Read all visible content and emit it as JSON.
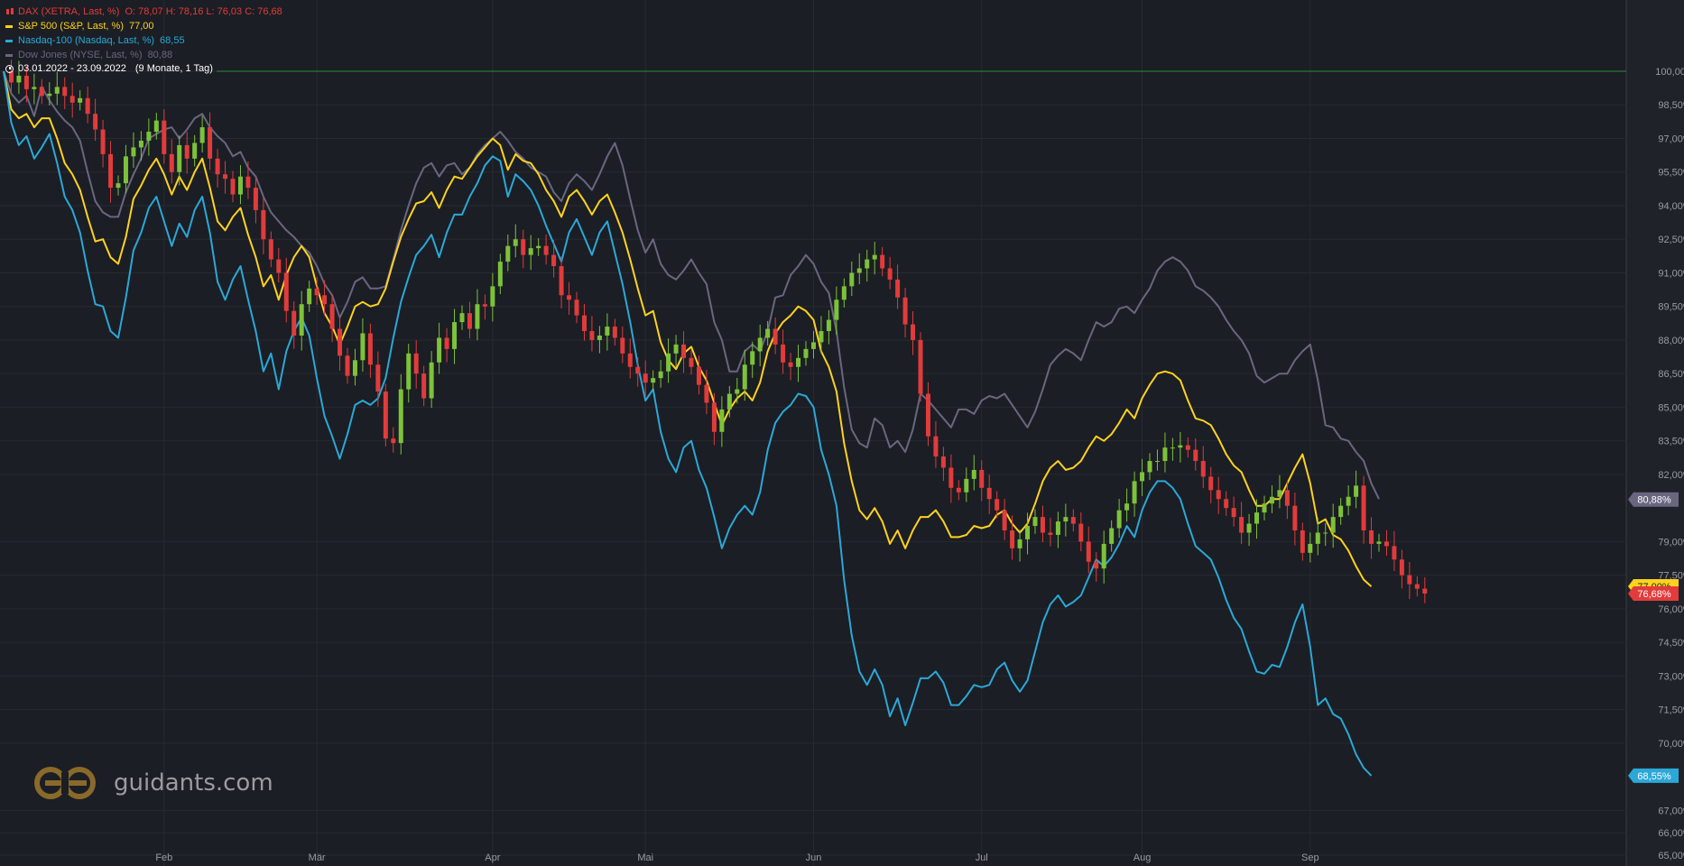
{
  "legend": {
    "dax": {
      "label": "DAX (XETRA, Last, %)",
      "ohlc": "O: 78,07  H: 78,16  L: 76,03  C: 76,68",
      "color": "#e23b3b"
    },
    "sp500": {
      "label": "S&P 500 (S&P, Last, %)",
      "value": "77,00",
      "color": "#ffd21e"
    },
    "nasdaq": {
      "label": "Nasdaq-100 (Nasdaq, Last, %)",
      "value": "68,55",
      "color": "#2ba8d8"
    },
    "dow": {
      "label": "Dow Jones (NYSE, Last, %)",
      "value": "80,88",
      "color": "#6a6680"
    }
  },
  "range": {
    "text": "03.01.2022 - 23.09.2022",
    "period": "(9 Monate, 1 Tag)"
  },
  "logo": {
    "text": "guidants.com"
  },
  "chart_data": {
    "type": "line",
    "title": "",
    "xlabel": "",
    "ylabel": "",
    "ylim": [
      65,
      100
    ],
    "yticks": [
      "100,00%",
      "98,50%",
      "97,00%",
      "95,50%",
      "94,00%",
      "92,50%",
      "91,00%",
      "89,50%",
      "88,00%",
      "86,50%",
      "85,00%",
      "83,50%",
      "82,00%",
      "79,00%",
      "77,50%",
      "76,00%",
      "74,50%",
      "73,00%",
      "71,50%",
      "70,00%",
      "67,00%",
      "66,00%",
      "65,00%"
    ],
    "ytick_values": [
      100,
      98.5,
      97,
      95.5,
      94,
      92.5,
      91,
      89.5,
      88,
      86.5,
      85,
      83.5,
      82,
      79,
      77.5,
      76,
      74.5,
      73,
      71.5,
      70,
      67,
      66,
      65
    ],
    "xticks": [
      "Feb",
      "Mär",
      "Apr",
      "Mai",
      "Jun",
      "Jul",
      "Aug",
      "Sep"
    ],
    "xtick_day_index": [
      21,
      41,
      64,
      84,
      106,
      128,
      149,
      171
    ],
    "reference_line": 100,
    "last_labels": [
      {
        "series": "Dow Jones",
        "text": "80,88%",
        "value": 80.88,
        "color": "#6a6680"
      },
      {
        "series": "S&P 500",
        "text": "77,00%",
        "value": 77.0,
        "color": "#ffd21e"
      },
      {
        "series": "DAX",
        "text": "76,68%",
        "value": 76.68,
        "color": "#e23b3b"
      },
      {
        "series": "Nasdaq-100",
        "text": "68,55%",
        "value": 68.55,
        "color": "#2ba8d8"
      }
    ],
    "series": [
      {
        "name": "Dow Jones",
        "color": "#6a6680",
        "values": [
          100,
          99,
          98.6,
          98.9,
          98,
          99.3,
          98.7,
          98.2,
          97.8,
          97.5,
          96.9,
          95.5,
          94.2,
          93.7,
          93.5,
          93.5,
          94.6,
          95.4,
          96.1,
          97,
          97.2,
          97.4,
          97.5,
          97,
          97.4,
          97.9,
          98.1,
          97.5,
          97.1,
          96.8,
          96.2,
          96.4,
          95.7,
          95.3,
          94.4,
          93.7,
          93.3,
          92.9,
          92.6,
          92.2,
          91.9,
          91.3,
          90.5,
          90,
          89,
          89.7,
          90.6,
          90.8,
          90.3,
          90.3,
          90.4,
          91.6,
          92.9,
          94,
          95,
          95.7,
          95.9,
          95.3,
          95.8,
          95.9,
          95.4,
          95.7,
          96.3,
          96.7,
          97,
          97.3,
          96.9,
          96.4,
          96.1,
          95.7,
          95.5,
          95.3,
          94.6,
          94.2,
          95,
          95.4,
          95.1,
          94.7,
          95.4,
          96.2,
          96.8,
          95.8,
          94.3,
          92.9,
          91.9,
          92.5,
          91.4,
          90.9,
          90.7,
          91.1,
          91.6,
          91,
          90.5,
          88.8,
          88,
          86.6,
          86.6,
          87.5,
          87.8,
          87.5,
          88.4,
          89.9,
          90,
          90.9,
          91.3,
          91.8,
          91.4,
          90.6,
          90.1,
          88.4,
          85.9,
          84,
          83.4,
          83.2,
          84.5,
          84.2,
          83.2,
          83.5,
          83,
          84,
          85.6,
          85.3,
          84.9,
          84.5,
          84.1,
          84.9,
          84.9,
          84.7,
          85.3,
          85.5,
          85.4,
          85.6,
          85.1,
          84.6,
          84.1,
          84.8,
          85.8,
          86.9,
          87.3,
          87.6,
          87.4,
          87.1,
          88,
          88.8,
          88.6,
          88.8,
          89.4,
          89.5,
          89.2,
          89.8,
          90.3,
          91.1,
          91.5,
          91.7,
          91.5,
          91.1,
          90.4,
          90.2,
          89.9,
          89.5,
          88.9,
          88.4,
          88,
          87.4,
          86.4,
          86.1,
          86.3,
          86.5,
          86.5,
          87.1,
          87.5,
          87.8,
          86.2,
          84.2,
          84.1,
          83.6,
          83.5,
          83,
          82.6,
          81.6,
          80.9
        ]
      },
      {
        "name": "S&P 500",
        "color": "#ffd21e",
        "values": [
          100,
          98.3,
          97.9,
          98.1,
          97.5,
          97.9,
          97.9,
          97,
          95.9,
          95.4,
          94.7,
          93.5,
          92.4,
          92.5,
          91.7,
          91.4,
          92.6,
          94.3,
          94.9,
          95.6,
          96.1,
          95.4,
          94.5,
          95.3,
          94.7,
          95.5,
          96.1,
          94.8,
          93.3,
          92.9,
          93.5,
          93.9,
          92.7,
          91.7,
          90.4,
          90.9,
          89.8,
          90.9,
          91.7,
          92.2,
          91.7,
          90.4,
          89.2,
          88.6,
          87.8,
          88.6,
          89.5,
          89.7,
          89.5,
          89.6,
          90.3,
          91.5,
          92.6,
          93.4,
          94.1,
          94.2,
          94.6,
          93.9,
          94.7,
          95.3,
          95.2,
          95.7,
          96.2,
          96.6,
          97,
          96.7,
          95.6,
          96.3,
          96,
          95.9,
          95.4,
          94.7,
          94.2,
          93.5,
          94.4,
          94.7,
          94.2,
          93.6,
          94.2,
          94.5,
          93.7,
          92.8,
          91.6,
          90.3,
          89.1,
          89.3,
          87.9,
          87.1,
          86.7,
          87.4,
          87.7,
          86.8,
          86.2,
          85.2,
          84.2,
          84.9,
          85.4,
          85.7,
          85.3,
          86.1,
          87.5,
          88.3,
          88.8,
          89.1,
          89.5,
          89.3,
          88.9,
          87.5,
          86.8,
          85.7,
          83.4,
          81.7,
          80.4,
          80,
          80.5,
          79.9,
          78.9,
          79.5,
          78.7,
          79.5,
          80.1,
          80.1,
          80.4,
          79.9,
          79.2,
          79.2,
          79.3,
          79.7,
          79.6,
          79.7,
          80.2,
          80.4,
          79.8,
          79.4,
          79.8,
          80.7,
          81.7,
          82.3,
          82.6,
          82.2,
          82.3,
          82.6,
          83.2,
          83.7,
          83.5,
          83.8,
          84.3,
          84.9,
          84.5,
          85.4,
          86,
          86.5,
          86.6,
          86.5,
          86.2,
          85.3,
          84.5,
          84.4,
          84.2,
          83.6,
          82.9,
          82.4,
          82.1,
          81.3,
          80.6,
          80.6,
          80.9,
          80.9,
          81.6,
          82.3,
          82.9,
          81.6,
          79.8,
          80,
          79.3,
          79.1,
          78.6,
          77.9,
          77.3,
          77
        ]
      },
      {
        "name": "Nasdaq-100",
        "color": "#2ba8d8",
        "values": [
          100,
          97.7,
          96.7,
          97.1,
          96.1,
          96.6,
          97.2,
          95.9,
          94.4,
          93.8,
          92.8,
          91.1,
          89.6,
          89.5,
          88.4,
          88.1,
          89.9,
          92,
          92.8,
          93.9,
          94.4,
          93.3,
          92.2,
          93.2,
          92.6,
          93.8,
          94.4,
          92.8,
          90.6,
          89.8,
          90.7,
          91.3,
          89.8,
          88.4,
          86.6,
          87.4,
          85.8,
          87.5,
          88.4,
          89,
          88.2,
          86.3,
          84.6,
          83.7,
          82.7,
          83.8,
          85.1,
          85.3,
          85.1,
          85.4,
          86.3,
          88.1,
          89.7,
          90.8,
          91.8,
          92.2,
          92.7,
          91.7,
          92.8,
          93.6,
          93.6,
          94.4,
          95,
          95.8,
          96.2,
          96,
          94.4,
          95.4,
          95.1,
          94.7,
          94,
          93.1,
          92.3,
          91.5,
          92.8,
          93.4,
          92.6,
          91.8,
          92.8,
          93.3,
          91.9,
          90.5,
          88.8,
          86.9,
          85.3,
          85.8,
          83.9,
          82.7,
          82.1,
          83.2,
          83.5,
          82.2,
          81.4,
          80.1,
          78.7,
          79.6,
          80.2,
          80.6,
          80.2,
          81.2,
          83.1,
          84.3,
          84.8,
          85.1,
          85.6,
          85.5,
          85,
          83.1,
          82,
          80.6,
          77.3,
          74.8,
          73.2,
          72.6,
          73.3,
          72.6,
          71.2,
          72,
          70.8,
          71.8,
          72.9,
          72.9,
          73.2,
          72.7,
          71.7,
          71.7,
          72.1,
          72.6,
          72.5,
          72.6,
          73.3,
          73.6,
          72.8,
          72.3,
          72.8,
          74.1,
          75.4,
          76.2,
          76.6,
          76.1,
          76.3,
          76.6,
          77.4,
          78.2,
          77.9,
          78.3,
          78.9,
          79.7,
          79.2,
          80.4,
          81.2,
          81.7,
          81.7,
          81.4,
          80.9,
          79.8,
          78.8,
          78.5,
          78.2,
          77.4,
          76.4,
          75.6,
          75.1,
          74.1,
          73.2,
          73.1,
          73.5,
          73.4,
          74.3,
          75.4,
          76.2,
          74.3,
          71.7,
          72,
          71.3,
          71.1,
          70.4,
          69.5,
          68.9,
          68.55
        ]
      }
    ],
    "candles": {
      "name": "DAX",
      "up_color": "#7cc23a",
      "down_color": "#e23b3b",
      "close": [
        100,
        99.5,
        99.8,
        99.2,
        99.3,
        98.9,
        99,
        99.3,
        98.9,
        98.6,
        98.8,
        98.1,
        97.4,
        96.3,
        94.8,
        95,
        96.2,
        96.6,
        96.9,
        97.3,
        97.8,
        96.3,
        95.5,
        96.7,
        96.1,
        96.8,
        97.5,
        96.1,
        95.4,
        95.2,
        94.5,
        95.3,
        94.8,
        93.8,
        92.5,
        91.6,
        91,
        89.3,
        88.2,
        89.6,
        90.3,
        90,
        89.6,
        88.5,
        87.3,
        86.4,
        87.1,
        88.3,
        86.9,
        85.7,
        83.6,
        83.4,
        85.8,
        87.4,
        86.5,
        85.4,
        87,
        88.1,
        87.6,
        88.8,
        89.2,
        88.5,
        89.6,
        89.5,
        90.4,
        91.5,
        92.2,
        92.5,
        91.8,
        92.1,
        92.2,
        91.8,
        91.3,
        90,
        89.8,
        89.1,
        88.4,
        88,
        88.2,
        88.6,
        88.1,
        87.4,
        86.8,
        86.5,
        86.1,
        86.3,
        86.6,
        87.4,
        87.8,
        87.2,
        86.8,
        86,
        85.2,
        83.9,
        84.9,
        85.6,
        85.8,
        86.9,
        87.5,
        88.1,
        88.5,
        87.8,
        87,
        86.8,
        87.2,
        87.6,
        87.9,
        88.4,
        88.9,
        89.8,
        90.4,
        91,
        91.2,
        91.6,
        91.8,
        91.2,
        90.7,
        89.9,
        88.7,
        88,
        85.6,
        83.7,
        82.8,
        82.3,
        81.4,
        81.2,
        81.8,
        82.2,
        81.4,
        80.9,
        80.4,
        79.5,
        78.7,
        79.1,
        79.7,
        80.1,
        79.4,
        79.3,
        79.9,
        80.1,
        79.8,
        79,
        78.1,
        77.8,
        78.9,
        79.6,
        80.4,
        80.7,
        81.7,
        82.1,
        82.6,
        82.6,
        83.2,
        83.2,
        83.3,
        83.1,
        82.6,
        81.9,
        81.3,
        80.9,
        80.5,
        80.1,
        79.4,
        79.8,
        80.3,
        80.7,
        81,
        81.3,
        80.6,
        79.5,
        78.5,
        78.9,
        79.4,
        79.4,
        80.1,
        80.6,
        81,
        81.5,
        79.5,
        78.9,
        79,
        78.8,
        78.2,
        77.5,
        77.1,
        76.9,
        76.68
      ]
    }
  }
}
